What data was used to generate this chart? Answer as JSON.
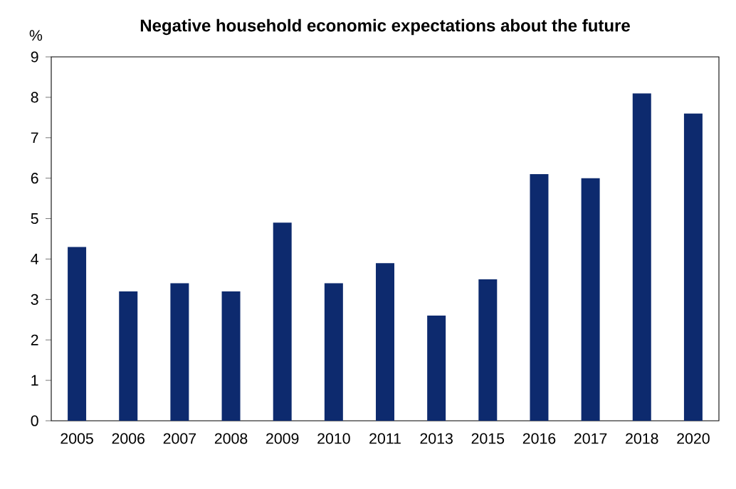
{
  "chart_data": {
    "type": "bar",
    "title": "Negative household economic expectations about the future",
    "ylabel": "%",
    "categories": [
      "2005",
      "2006",
      "2007",
      "2008",
      "2009",
      "2010",
      "2011",
      "2013",
      "2015",
      "2016",
      "2017",
      "2018",
      "2020"
    ],
    "values": [
      4.3,
      3.2,
      3.4,
      3.2,
      4.9,
      3.4,
      3.9,
      2.6,
      3.5,
      6.1,
      6.0,
      8.1,
      7.6
    ],
    "color": "#0d2a6e",
    "ylim": [
      0,
      9
    ],
    "yticks": [
      0,
      1,
      2,
      3,
      4,
      5,
      6,
      7,
      8,
      9
    ],
    "grid": false
  }
}
